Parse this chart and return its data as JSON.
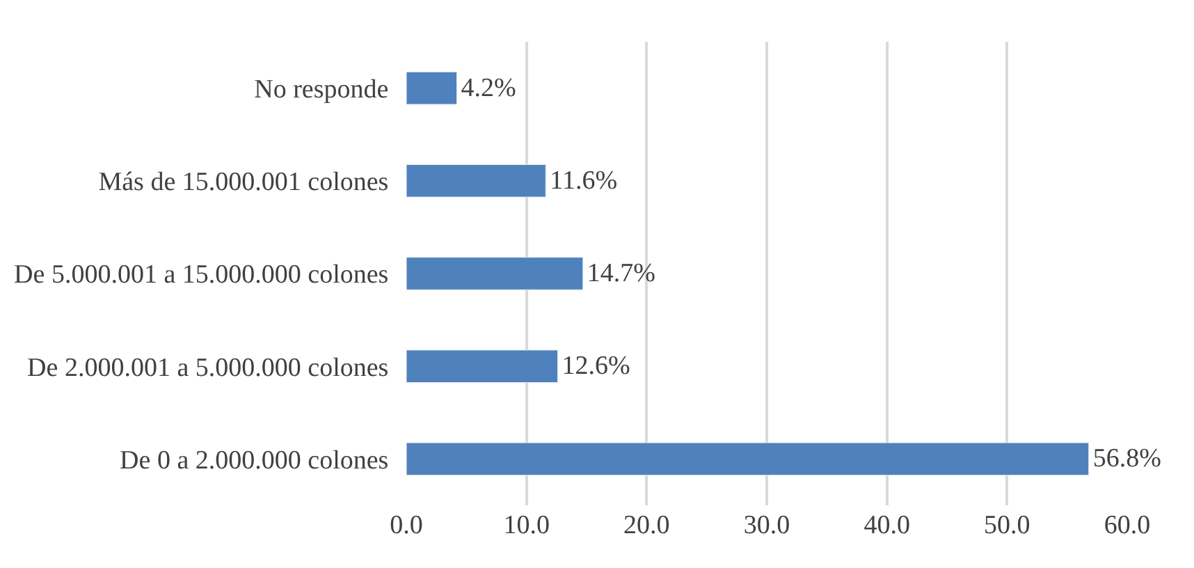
{
  "chart_data": {
    "type": "bar",
    "orientation": "horizontal",
    "categories": [
      "No responde",
      "Más de 15.000.001 colones",
      "De 5.000.001 a 15.000.000 colones",
      "De 2.000.001 a 5.000.000 colones",
      "De 0 a 2.000.000 colones"
    ],
    "values": [
      4.2,
      11.6,
      14.7,
      12.6,
      56.8
    ],
    "value_labels": [
      "4.2%",
      "11.6%",
      "14.7%",
      "12.6%",
      "56.8%"
    ],
    "color": "#4f81bd",
    "xlim": [
      0,
      60
    ],
    "xticks": [
      {
        "value": 0,
        "label": "0.0"
      },
      {
        "value": 10,
        "label": "10.0"
      },
      {
        "value": 20,
        "label": "20.0"
      },
      {
        "value": 30,
        "label": "30.0"
      },
      {
        "value": 40,
        "label": "40.0"
      },
      {
        "value": 50,
        "label": "50.0"
      },
      {
        "value": 60,
        "label": "60.0"
      }
    ],
    "grid": "x"
  }
}
